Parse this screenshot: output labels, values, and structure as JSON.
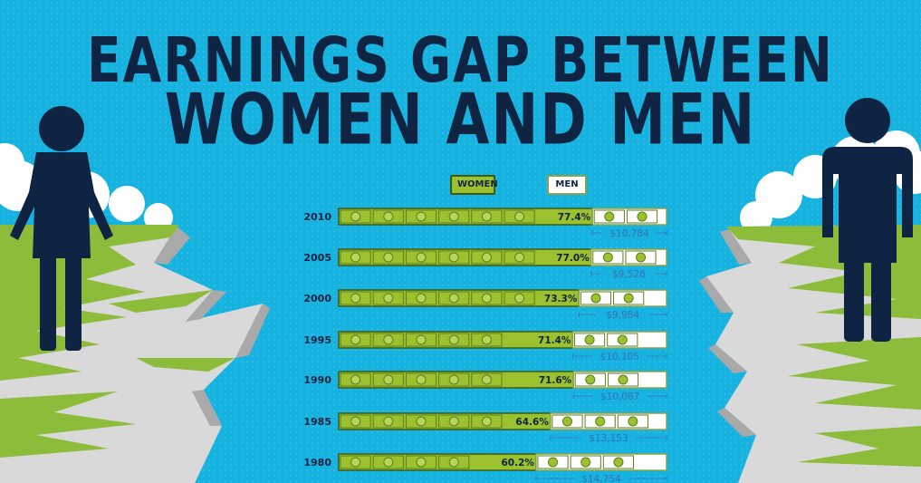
{
  "title_line1": "EARNINGS GAP BETWEEN",
  "title_line2": "WOMEN AND MEN",
  "legend": {
    "women": "WOMEN",
    "men": "MEN"
  },
  "colors": {
    "background": "#16b3e0",
    "women_bar": "#9cc12f",
    "men_bar": "#ffffff",
    "figure": "#0f2442",
    "grass": "#8dbb3a",
    "cliff": "#d6d6d6"
  },
  "icons": {
    "women_figure": "woman-figure-icon",
    "men_figure": "man-figure-icon",
    "bill": "dollar-bill-icon"
  },
  "chart_data": {
    "type": "bar",
    "orientation": "horizontal",
    "stacked": true,
    "categories": [
      "2010",
      "2005",
      "2000",
      "1995",
      "1990",
      "1985",
      "1980"
    ],
    "series": [
      {
        "name": "WOMEN",
        "values": [
          77.4,
          77.0,
          73.3,
          71.4,
          71.6,
          64.6,
          60.2
        ],
        "labels": [
          "77.4%",
          "77.0%",
          "73.3%",
          "71.4%",
          "71.6%",
          "64.6%",
          "60.2%"
        ]
      },
      {
        "name": "MEN",
        "values": [
          22.6,
          23.0,
          26.7,
          28.6,
          28.4,
          35.4,
          39.8
        ]
      }
    ],
    "gap_labels": [
      "$10,784",
      "$9,528",
      "$9,984",
      "$10,105",
      "$10,087",
      "$13,153",
      "$14,754"
    ],
    "xlim": [
      0,
      100
    ],
    "legend_position": "top"
  }
}
